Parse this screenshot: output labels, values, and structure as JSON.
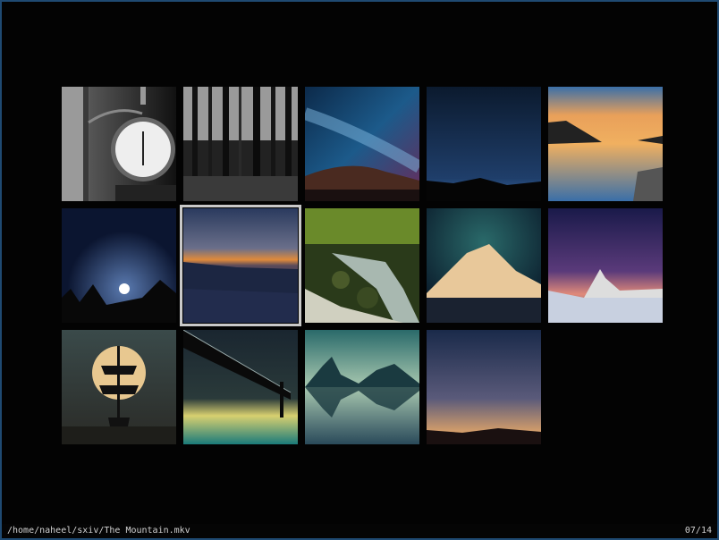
{
  "app": {
    "name": "sxiv",
    "mode": "thumbnail"
  },
  "thumbnails": [
    {
      "subject": "street clock",
      "selected": false
    },
    {
      "subject": "forest",
      "selected": false
    },
    {
      "subject": "milky way",
      "selected": false
    },
    {
      "subject": "night sky horizon",
      "selected": false
    },
    {
      "subject": "lake sunset",
      "selected": false
    },
    {
      "subject": "moonlit trees",
      "selected": false
    },
    {
      "subject": "the mountain",
      "selected": true
    },
    {
      "subject": "forest stream",
      "selected": false
    },
    {
      "subject": "snowy volcano",
      "selected": false
    },
    {
      "subject": "matterhorn stars",
      "selected": false
    },
    {
      "subject": "ship and moon",
      "selected": false
    },
    {
      "subject": "bridge",
      "selected": false
    },
    {
      "subject": "mountain reflection",
      "selected": false
    },
    {
      "subject": "dusk sky",
      "selected": false
    }
  ],
  "status": {
    "path": "/home/naheel/sxiv/The Mountain.mkv",
    "counter": "07/14"
  },
  "colors": {
    "border": "#1f4a72",
    "selection": "#c9c9c9",
    "status_text": "#d0d0d0"
  }
}
